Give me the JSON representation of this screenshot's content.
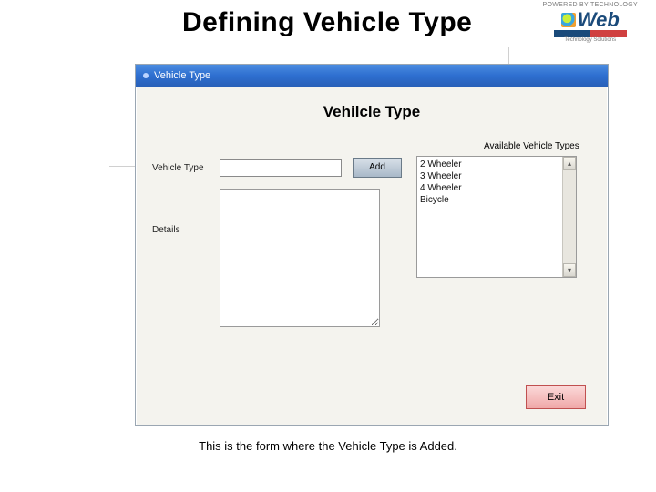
{
  "slide": {
    "title": "Defining Vehicle Type",
    "caption": "This is the form where the Vehicle Type is Added."
  },
  "logo": {
    "top": "POWERED BY TECHNOLOGY",
    "main": "Web",
    "sub": "Technology Solutions"
  },
  "window": {
    "title": "Vehicle Type",
    "heading": "Vehilcle Type",
    "available_label": "Available Vehicle Types",
    "vehicle_type_label": "Vehicle Type",
    "vehicle_type_value": "",
    "add_button": "Add",
    "details_label": "Details",
    "details_value": "",
    "exit_button": "Exit",
    "available_items": [
      "2 Wheeler",
      "3 Wheeler",
      "4 Wheeler",
      "Bicycle"
    ]
  },
  "colors": {
    "titlebar_bg": "#2e6fd0",
    "window_bg": "#f4f3ee",
    "add_btn_bg": "#b8c4d0",
    "exit_btn_bg": "#f0a8a8"
  }
}
